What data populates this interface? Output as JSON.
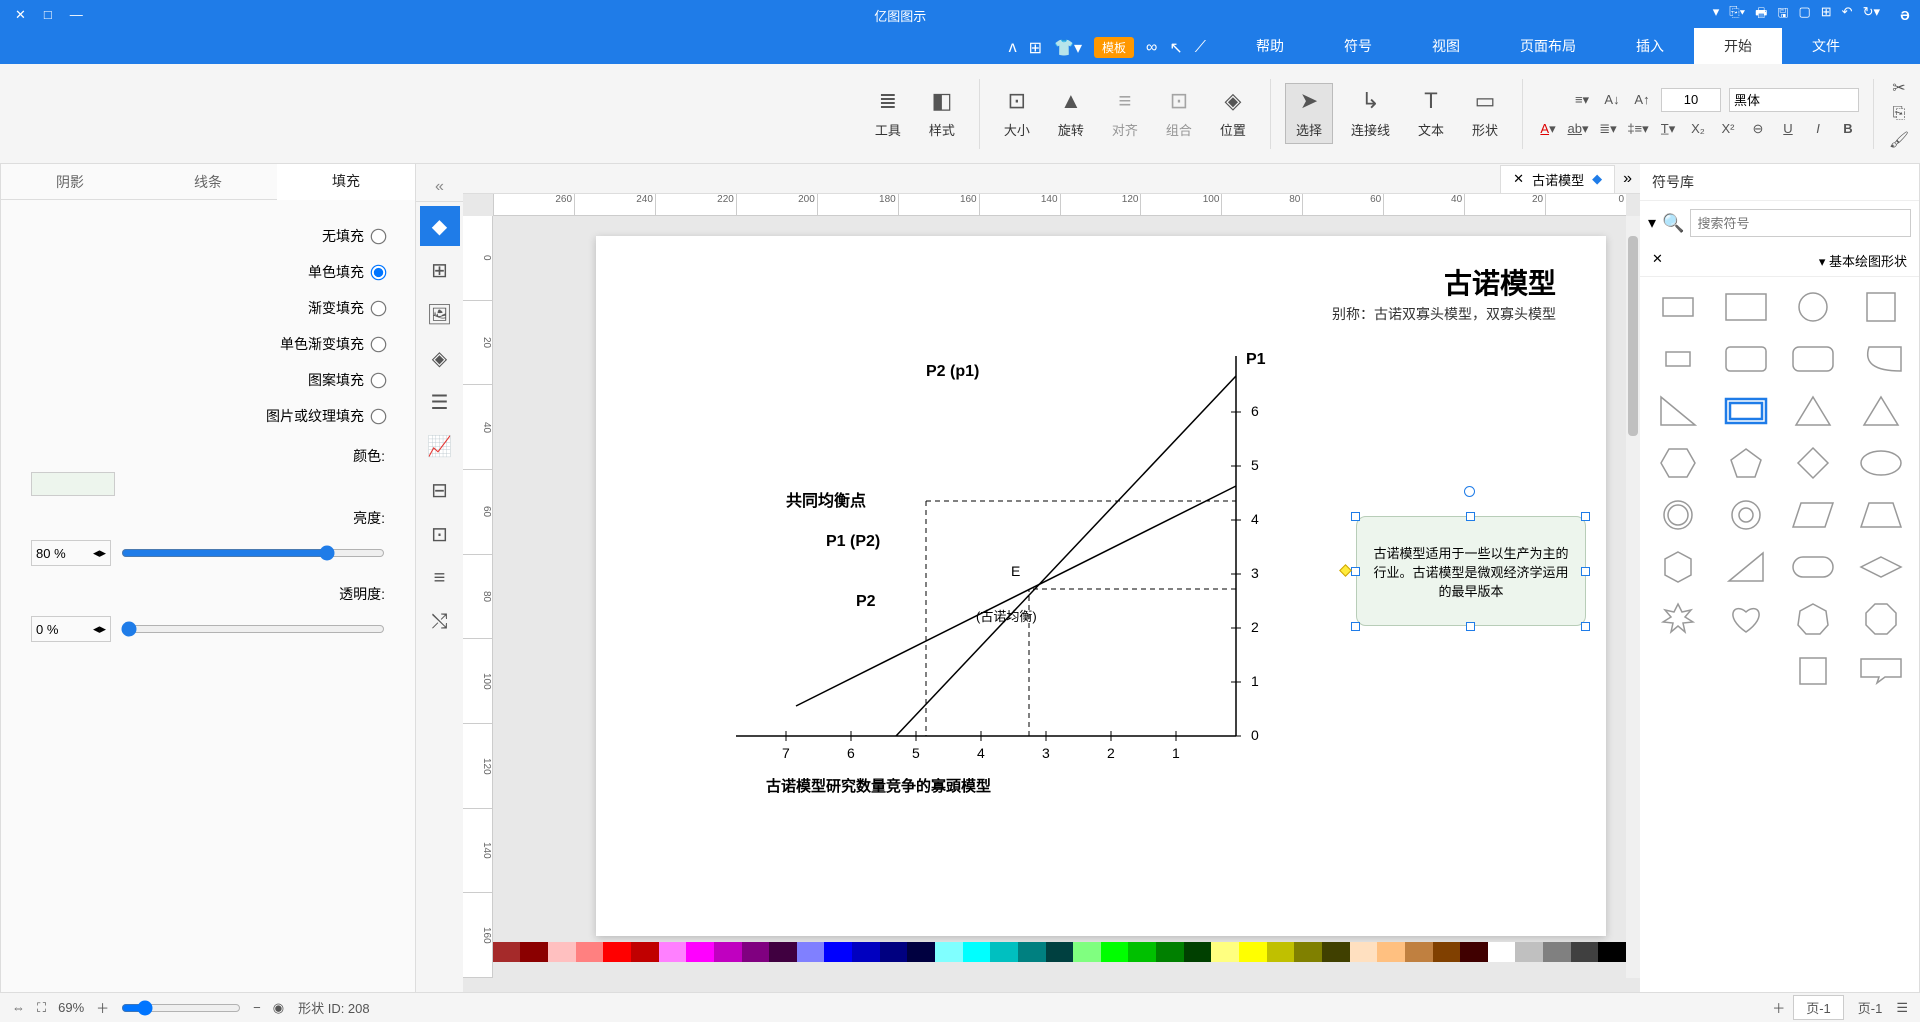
{
  "app": {
    "title": "亿图图示"
  },
  "menu": {
    "tabs": [
      "文件",
      "开始",
      "插入",
      "页面布局",
      "视图",
      "符号",
      "帮助"
    ],
    "active": 1,
    "template_label": "模板"
  },
  "ribbon": {
    "font_name": "黑体",
    "font_size": "10",
    "groups": {
      "shape": "形状",
      "text": "文本",
      "connector": "连接线",
      "select": "选择",
      "position": "位置",
      "combine": "组合",
      "align": "对齐",
      "rotate": "旋转",
      "size": "大小",
      "style": "样式",
      "tools": "工具"
    }
  },
  "left": {
    "panel_title": "符号库",
    "search_placeholder": "搜索符号",
    "section_title": "基本绘图形状"
  },
  "doc_tab": {
    "name": "古诺模型"
  },
  "page": {
    "title": "古诺模型",
    "subtitle": "别称：古诺双寡头模型，双寡头模型",
    "note": "古诺模型适用于一些以生产为主的行业。古诺模型是微观经济学运用的最早版本",
    "chart": {
      "y_title": "P1",
      "curve1": "P2 (p1)",
      "curve2": "P1 (P2)",
      "p2_label": "P2",
      "eq_label": "共同均衡点",
      "e_label": "E",
      "e_sub": "(古诺均衡)",
      "caption": "古诺模型研究数量竞争的寡頭模型",
      "x_ticks": [
        "1",
        "2",
        "3",
        "4",
        "5",
        "6",
        "7"
      ],
      "y_ticks": [
        "0",
        "1",
        "2",
        "3",
        "4",
        "5",
        "6"
      ]
    }
  },
  "rp": {
    "tabs": [
      "填充",
      "线条",
      "阴影"
    ],
    "active": 0,
    "fill_options": [
      "无填充",
      "单色填充",
      "渐变填充",
      "单色渐变填充",
      "图案填充",
      "图片或纹理填充"
    ],
    "selected": 1,
    "color_label": "颜色:",
    "bright_label": "亮度:",
    "bright_value": "80 %",
    "opacity_label": "透明度:",
    "opacity_value": "0 %",
    "fill_color": "#edf5ed"
  },
  "status": {
    "page_label": "页-1",
    "page_tab": "页-1",
    "shape_id": "形状 ID: 208",
    "zoom": "69%"
  },
  "ruler_h": [
    "0",
    "20",
    "40",
    "60",
    "80",
    "100",
    "120",
    "140",
    "160",
    "180",
    "200",
    "220",
    "240",
    "260"
  ],
  "ruler_v": [
    "0",
    "20",
    "40",
    "60",
    "80",
    "100",
    "120",
    "140",
    "160"
  ],
  "colors": [
    "#000000",
    "#404040",
    "#808080",
    "#c0c0c0",
    "#ffffff",
    "#400000",
    "#804000",
    "#c08040",
    "#ffc080",
    "#ffe0c0",
    "#404000",
    "#808000",
    "#c0c000",
    "#ffff00",
    "#ffff80",
    "#004000",
    "#008000",
    "#00c000",
    "#00ff00",
    "#80ff80",
    "#004040",
    "#008080",
    "#00c0c0",
    "#00ffff",
    "#80ffff",
    "#000040",
    "#000080",
    "#0000c0",
    "#0000ff",
    "#8080ff",
    "#400040",
    "#800080",
    "#c000c0",
    "#ff00ff",
    "#ff80ff",
    "#c00000",
    "#ff0000",
    "#ff8080",
    "#ffc0c0",
    "#8b0000",
    "#a52a2a"
  ]
}
